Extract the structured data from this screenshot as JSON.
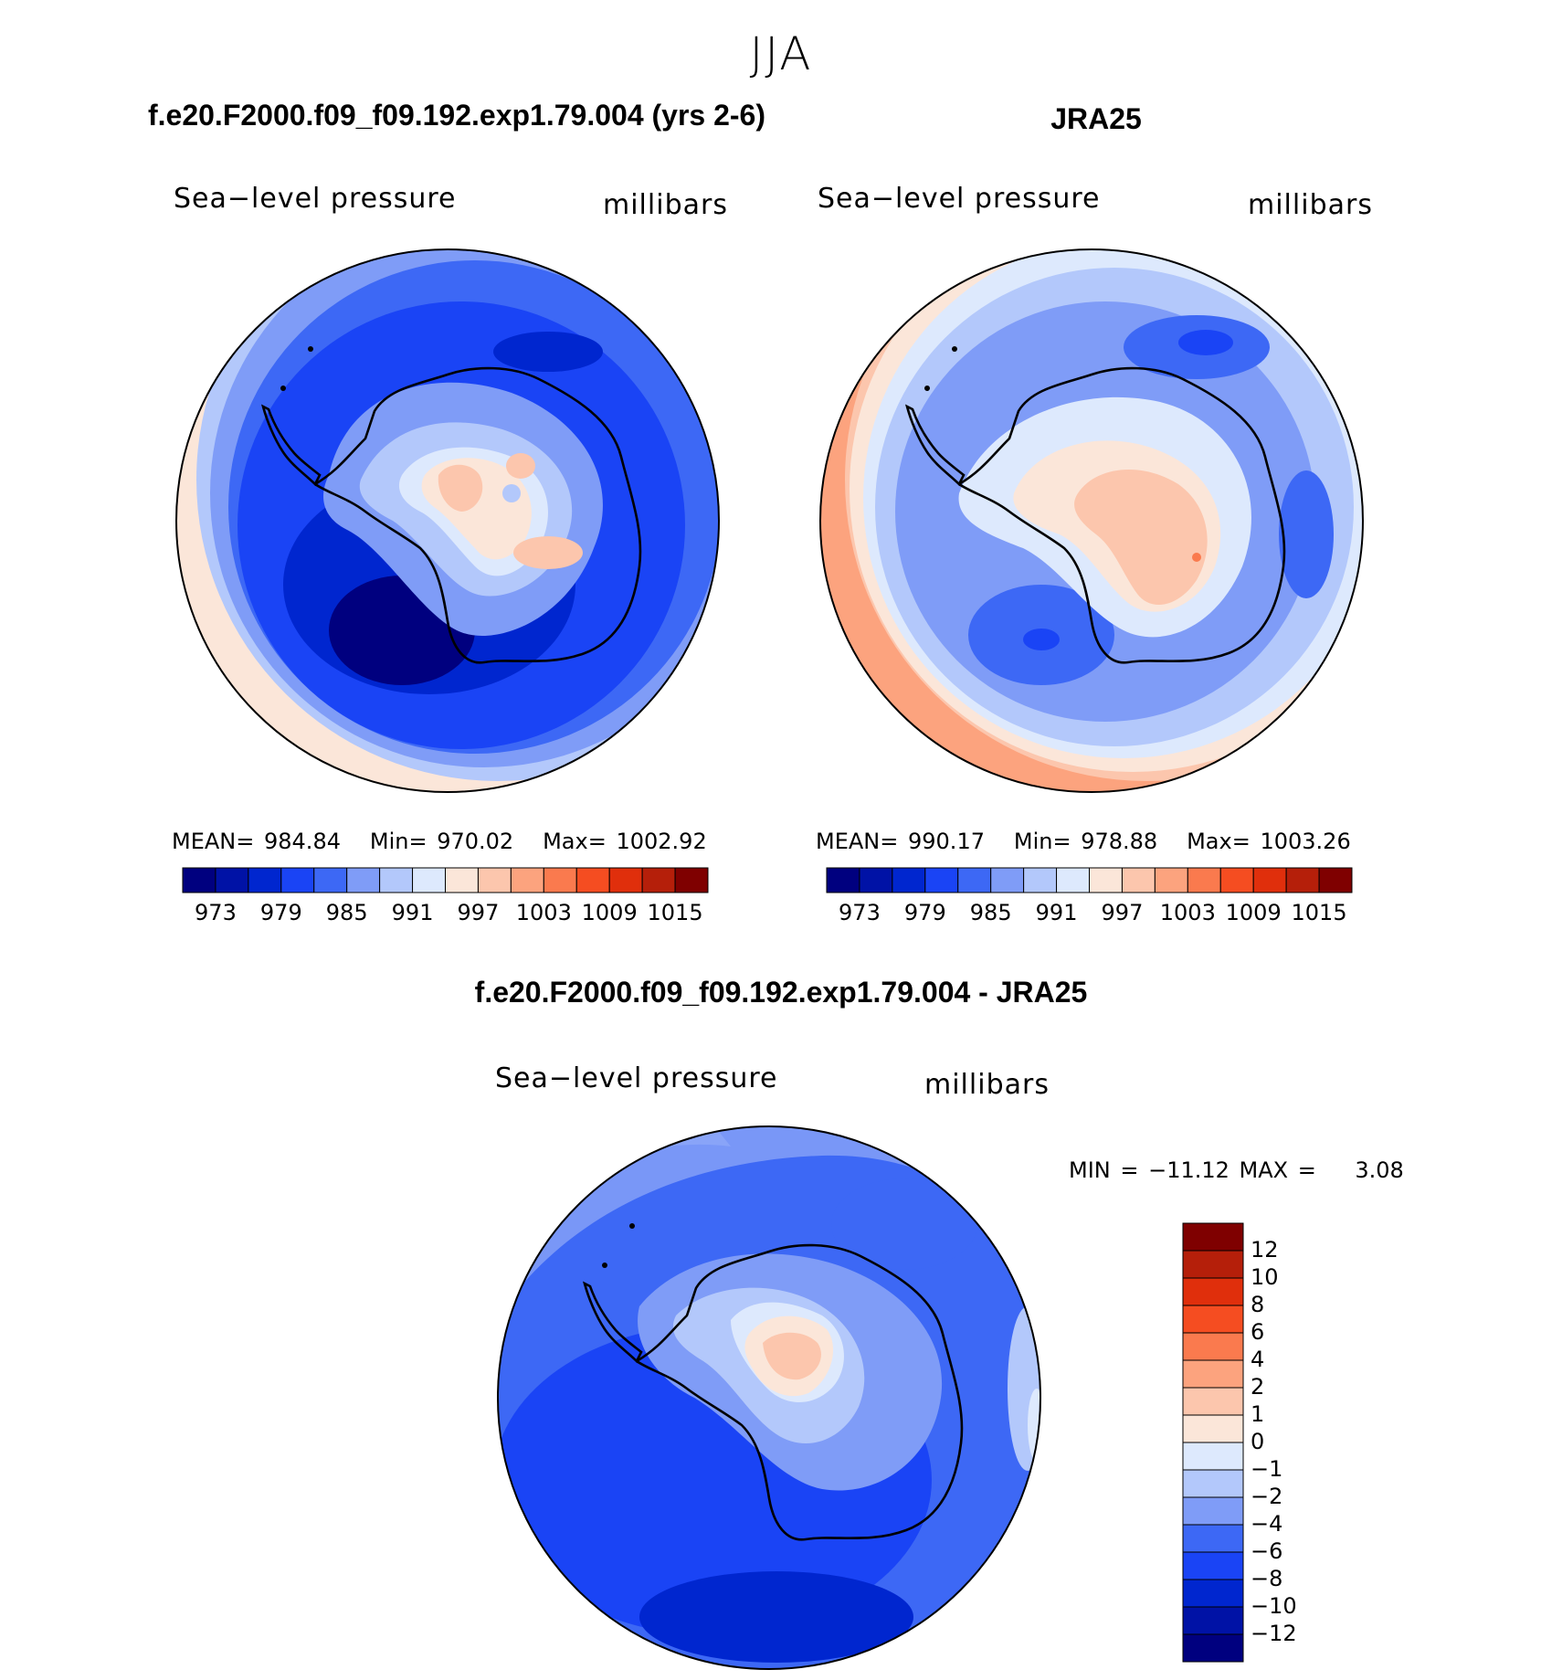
{
  "figure": {
    "season": "JJA"
  },
  "panels": [
    {
      "id": "model",
      "title": "f.e20.F2000.f09_f09.192.exp1.79.004 (yrs 2-6)",
      "variable_label": "Sea−level pressure",
      "units_label": "millibars",
      "stats": {
        "mean_label": "MEAN=",
        "mean": "984.84",
        "min_label": "Min=",
        "min": "970.02",
        "max_label": "Max=",
        "max": "1002.92"
      }
    },
    {
      "id": "obs",
      "title": "JRA25",
      "variable_label": "Sea−level pressure",
      "units_label": "millibars",
      "stats": {
        "mean_label": "MEAN=",
        "mean": "990.17",
        "min_label": "Min=",
        "min": "978.88",
        "max_label": "Max=",
        "max": "1003.26"
      }
    },
    {
      "id": "difference",
      "title": "f.e20.F2000.f09_f09.192.exp1.79.004 - JRA25",
      "variable_label": "Sea−level pressure",
      "units_label": "millibars",
      "stats_text": "MIN = −11.12 MAX =    3.08"
    }
  ],
  "colorbars": {
    "absolute": {
      "colors": [
        "#00007f",
        "#0012a6",
        "#0026cf",
        "#1a44f5",
        "#3d68f5",
        "#7f9cf7",
        "#b3c8fb",
        "#dde9fd",
        "#fbe6d9",
        "#fcc6ad",
        "#fca37e",
        "#fa7a4e",
        "#f54d21",
        "#e02f0c",
        "#b51f0a",
        "#7f0000"
      ],
      "ticks": [
        "973",
        "979",
        "985",
        "991",
        "997",
        "1003",
        "1009",
        "1015"
      ]
    },
    "difference": {
      "colors_bottom_to_top": [
        "#00007f",
        "#0012a6",
        "#0026cf",
        "#1a44f5",
        "#3d68f5",
        "#7f9cf7",
        "#b3c8fb",
        "#dde9fd",
        "#fbe6d9",
        "#fcc6ad",
        "#fca37e",
        "#fa7a4e",
        "#f54d21",
        "#e02f0c",
        "#b51f0a",
        "#7f0000"
      ],
      "ticks_top_to_bottom": [
        "12",
        "10",
        "8",
        "6",
        "4",
        "2",
        "1",
        "0",
        "−1",
        "−2",
        "−4",
        "−6",
        "−8",
        "−10",
        "−12"
      ]
    }
  }
}
